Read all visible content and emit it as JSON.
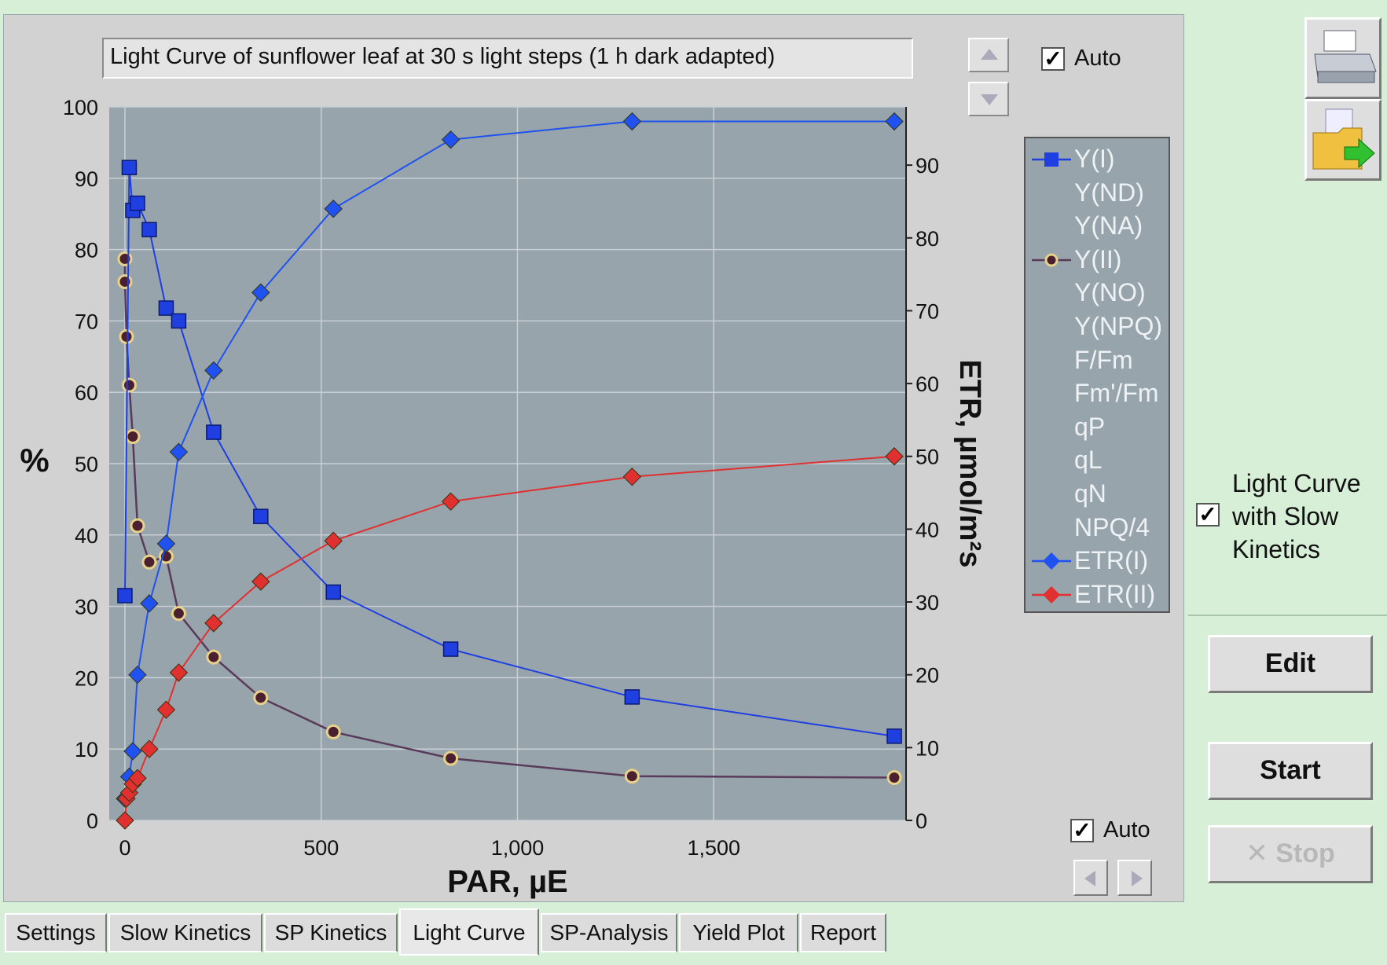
{
  "chart_title": "Light Curve of sunflower leaf at 30 s light steps (1 h dark adapted)",
  "auto_top_label": "Auto",
  "auto_bottom_label": "Auto",
  "lc_checkbox_lines": [
    "Light Curve",
    "with Slow",
    "Kinetics"
  ],
  "buttons": {
    "edit": "Edit",
    "start": "Start",
    "stop": "Stop"
  },
  "tabs": [
    "Settings",
    "Slow Kinetics",
    "SP Kinetics",
    "Light Curve",
    "SP-Analysis",
    "Yield Plot",
    "Report"
  ],
  "active_tab": "Light Curve",
  "legend": [
    "Y(I)",
    "Y(ND)",
    "Y(NA)",
    "Y(II)",
    "Y(NO)",
    "Y(NPQ)",
    "F/Fm",
    "Fm'/Fm",
    "qP",
    "qL",
    "qN",
    "NPQ/4",
    "ETR(I)",
    "ETR(II)"
  ],
  "colors": {
    "plot_bg": "#97a4ac",
    "yi": "#1f3fe0",
    "yii_line": "#5a3a5a",
    "yii_fill": "#4a2030",
    "yii_ring": "#e8d28a",
    "etr1": "#1f52f0",
    "etr2": "#e03030"
  },
  "chart_data": {
    "type": "line",
    "xlabel": "PAR, µE",
    "ylabel": "%",
    "y2label": "ETR, µmol/m²s",
    "xlim": [
      -40,
      1990
    ],
    "ylim": [
      0,
      100
    ],
    "y2lim": [
      0,
      98
    ],
    "xticks": [
      0,
      500,
      1000,
      1500
    ],
    "xticklabels": [
      "0",
      "500",
      "1,000",
      "1,500"
    ],
    "yticks": [
      0,
      10,
      20,
      30,
      40,
      50,
      60,
      70,
      80,
      90,
      100
    ],
    "y2ticks": [
      0,
      10,
      20,
      30,
      40,
      50,
      60,
      70,
      80,
      90
    ],
    "grid": true,
    "legend_position": "right",
    "series": [
      {
        "name": "Y(I)",
        "axis": "left",
        "marker": "square",
        "x": [
          0,
          11,
          20,
          32,
          62,
          105,
          137,
          226,
          346,
          531,
          830,
          1292,
          1960
        ],
        "y": [
          31.5,
          91.5,
          85.5,
          86.5,
          82.8,
          71.8,
          70.0,
          54.4,
          42.6,
          32.0,
          24.0,
          17.3,
          11.8
        ]
      },
      {
        "name": "Y(II)",
        "axis": "left",
        "marker": "circle",
        "x": [
          0,
          0,
          4,
          11,
          20,
          32,
          62,
          105,
          137,
          226,
          346,
          531,
          830,
          1292,
          1960
        ],
        "y": [
          78.7,
          75.5,
          67.8,
          61.0,
          53.8,
          41.3,
          36.2,
          37.0,
          29.0,
          22.9,
          17.2,
          12.4,
          8.7,
          6.2,
          6.0
        ]
      },
      {
        "name": "ETR(I)",
        "axis": "right",
        "marker": "diamond",
        "x": [
          0,
          11,
          20,
          32,
          62,
          105,
          137,
          226,
          346,
          531,
          830,
          1292,
          1960
        ],
        "y": [
          3.0,
          6.0,
          9.5,
          20.0,
          29.8,
          38.0,
          50.6,
          61.8,
          72.5,
          84.0,
          93.5,
          96.0,
          96.0
        ]
      },
      {
        "name": "ETR(II)",
        "axis": "right",
        "marker": "diamond",
        "x": [
          0,
          4,
          11,
          20,
          32,
          62,
          105,
          137,
          226,
          346,
          531,
          830,
          1292,
          1960
        ],
        "y": [
          0,
          3.0,
          3.8,
          5.0,
          5.8,
          9.8,
          15.2,
          20.3,
          27.1,
          32.8,
          38.4,
          43.8,
          47.2,
          50.0
        ]
      }
    ]
  }
}
